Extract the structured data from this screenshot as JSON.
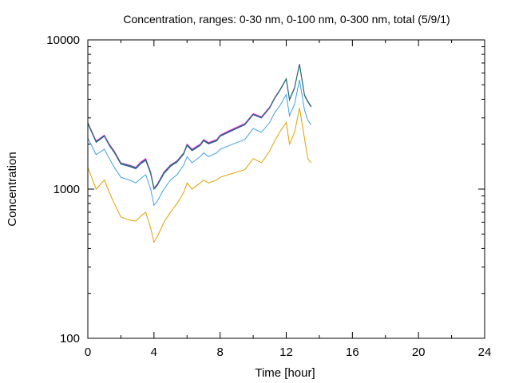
{
  "chart_data": {
    "type": "line",
    "title": "Concentration, ranges: 0-30 nm, 0-100 nm, 0-300 nm, total (5/9/1)",
    "xlabel": "Time [hour]",
    "ylabel": "Concentration",
    "xlim": [
      0,
      24
    ],
    "ylim": [
      100,
      10000
    ],
    "yscale": "log",
    "xticks": [
      0,
      4,
      8,
      12,
      16,
      20,
      24
    ],
    "xtick_labels": [
      "0",
      "4",
      "8",
      "12",
      "16",
      "20",
      "24"
    ],
    "yticks": [
      100,
      1000,
      10000
    ],
    "ytick_labels": [
      "100",
      "1000",
      "10000"
    ],
    "grid": false,
    "legend": "none",
    "x": [
      0,
      0.5,
      1,
      1.3,
      1.6,
      2,
      2.5,
      2.9,
      3.2,
      3.5,
      3.8,
      4.0,
      4.2,
      4.6,
      5.0,
      5.4,
      5.8,
      6.0,
      6.3,
      6.8,
      7.0,
      7.3,
      7.8,
      8.0,
      8.5,
      9.0,
      9.5,
      10.0,
      10.5,
      11.0,
      11.3,
      11.6,
      12.0,
      12.2,
      12.5,
      12.8,
      13.1,
      13.3,
      13.5
    ],
    "series": [
      {
        "color": "#e0a000",
        "values": [
          1400,
          1000,
          1150,
          950,
          800,
          650,
          620,
          610,
          660,
          700,
          550,
          440,
          480,
          600,
          700,
          800,
          950,
          1100,
          1000,
          1100,
          1150,
          1100,
          1150,
          1200,
          1250,
          1300,
          1350,
          1600,
          1500,
          1800,
          2100,
          2400,
          2800,
          2000,
          2400,
          3500,
          2200,
          1600,
          1500
        ]
      },
      {
        "color": "#40a0e0",
        "values": [
          2200,
          1700,
          1850,
          1600,
          1400,
          1200,
          1150,
          1100,
          1180,
          1250,
          1000,
          780,
          830,
          1000,
          1150,
          1250,
          1450,
          1650,
          1500,
          1650,
          1750,
          1650,
          1750,
          1850,
          1950,
          2050,
          2150,
          2550,
          2400,
          2800,
          3250,
          3600,
          4300,
          3100,
          3700,
          5400,
          3400,
          2900,
          2700
        ]
      },
      {
        "color": "#ff00ff",
        "values": [
          2800,
          2100,
          2300,
          2000,
          1800,
          1500,
          1450,
          1400,
          1520,
          1600,
          1300,
          1020,
          1080,
          1300,
          1450,
          1550,
          1750,
          2000,
          1850,
          2000,
          2150,
          2050,
          2150,
          2300,
          2450,
          2600,
          2750,
          3200,
          3050,
          3550,
          4100,
          4600,
          5500,
          4000,
          4800,
          6900,
          4300,
          3900,
          3600
        ]
      },
      {
        "color": "#1040a0",
        "values": [
          2750,
          2060,
          2260,
          1960,
          1760,
          1470,
          1420,
          1370,
          1480,
          1560,
          1270,
          1000,
          1060,
          1270,
          1420,
          1520,
          1720,
          1960,
          1810,
          1960,
          2110,
          2010,
          2110,
          2260,
          2400,
          2550,
          2700,
          3150,
          3000,
          3500,
          4050,
          4550,
          5450,
          3950,
          4750,
          6850,
          4250,
          3850,
          3550
        ]
      },
      {
        "color": "#208060",
        "values": [
          2780,
          2080,
          2280,
          1980,
          1780,
          1490,
          1440,
          1390,
          1500,
          1580,
          1290,
          1010,
          1070,
          1290,
          1440,
          1540,
          1740,
          1980,
          1830,
          1980,
          2130,
          2030,
          2130,
          2280,
          2420,
          2570,
          2720,
          3170,
          3020,
          3520,
          4080,
          4580,
          5480,
          3980,
          4780,
          6880,
          4280,
          3880,
          3580
        ]
      }
    ]
  }
}
